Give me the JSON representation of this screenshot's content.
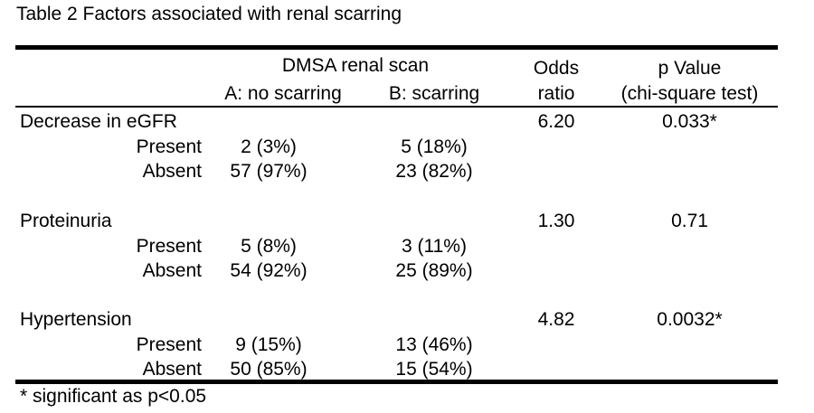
{
  "title": "Table 2   Factors associated with renal scarring",
  "header": {
    "group_label": "DMSA renal scan",
    "col_a": "A: no scarring",
    "col_b": "B: scarring",
    "odds_line1": "Odds",
    "odds_line2": "ratio",
    "p_line1": "p Value",
    "p_line2": "(chi-square test)"
  },
  "groups": [
    {
      "factor": "Decrease in eGFR",
      "odds_ratio": "6.20",
      "p_value": "0.033*",
      "rows": [
        {
          "label": "Present",
          "a": "2 (3%)",
          "b": "5 (18%)"
        },
        {
          "label": "Absent",
          "a": "57 (97%)",
          "b": "23 (82%)"
        }
      ]
    },
    {
      "factor": "Proteinuria",
      "odds_ratio": "1.30",
      "p_value": "0.71",
      "rows": [
        {
          "label": "Present",
          "a": "5 (8%)",
          "b": "3 (11%)"
        },
        {
          "label": "Absent",
          "a": "54 (92%)",
          "b": "25 (89%)"
        }
      ]
    },
    {
      "factor": "Hypertension",
      "odds_ratio": "4.82",
      "p_value": "0.0032*",
      "rows": [
        {
          "label": "Present",
          "a": "9 (15%)",
          "b": "13 (46%)"
        },
        {
          "label": "Absent",
          "a": "50 (85%)",
          "b": "15 (54%)"
        }
      ]
    }
  ],
  "footnote": "* significant as p<0.05"
}
